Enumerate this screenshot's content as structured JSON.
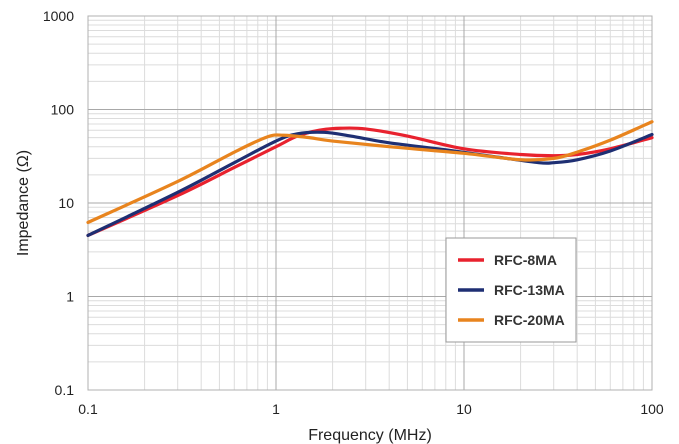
{
  "chart_data": {
    "type": "line",
    "x_scale": "log",
    "y_scale": "log",
    "xlabel": "Frequency (MHz)",
    "ylabel": "Impedance (Ω)",
    "xlim": [
      0.1,
      100
    ],
    "ylim": [
      0.1,
      1000
    ],
    "x_ticks": [
      "0.1",
      "1",
      "10",
      "100"
    ],
    "y_ticks": [
      "0.1",
      "1",
      "10",
      "100",
      "1000"
    ],
    "grid": true,
    "legend_position": "bottom-right",
    "series": [
      {
        "name": "RFC-8MA",
        "color": "#e8222e",
        "x": [
          0.1,
          0.3,
          0.6,
          1.0,
          1.3,
          1.7,
          2.2,
          3.0,
          5.0,
          10,
          20,
          30,
          40,
          60,
          100
        ],
        "y": [
          4.5,
          12,
          24,
          40,
          52,
          60,
          63,
          62,
          52,
          38,
          33,
          32,
          33,
          38,
          50
        ]
      },
      {
        "name": "RFC-13MA",
        "color": "#1e2f73",
        "x": [
          0.1,
          0.3,
          0.6,
          1.0,
          1.3,
          1.8,
          2.5,
          4.0,
          8.0,
          15,
          25,
          30,
          40,
          60,
          100
        ],
        "y": [
          4.5,
          13,
          27,
          46,
          55,
          57,
          52,
          44,
          37,
          31,
          27,
          27,
          29,
          36,
          54
        ]
      },
      {
        "name": "RFC-20MA",
        "color": "#e8841e",
        "x": [
          0.1,
          0.3,
          0.6,
          0.9,
          1.1,
          1.5,
          2.0,
          4.0,
          10,
          20,
          30,
          40,
          60,
          100
        ],
        "y": [
          6.2,
          17,
          35,
          51,
          53,
          50,
          46,
          40,
          34,
          29,
          30,
          35,
          47,
          74
        ]
      }
    ]
  }
}
